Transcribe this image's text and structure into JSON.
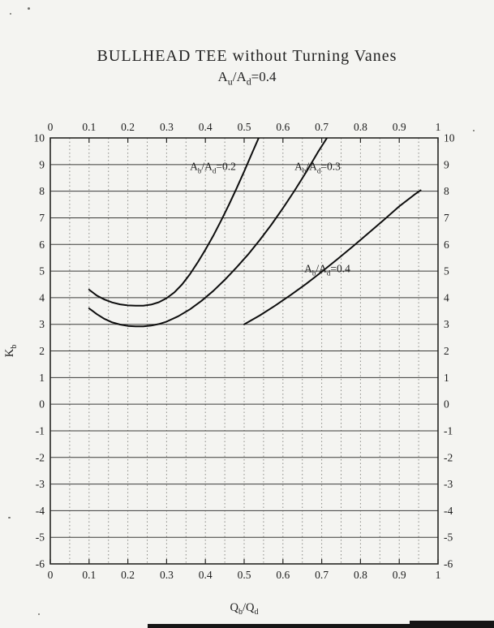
{
  "chart_data": {
    "type": "line",
    "title": "BULLHEAD TEE without Turning Vanes",
    "subtitle": "A_u/A_d=0.4",
    "xlabel": "Q_b/Q_d",
    "ylabel": "K_b",
    "xlim": [
      0,
      1
    ],
    "ylim": [
      -6,
      10
    ],
    "x_ticks": [
      0,
      0.1,
      0.2,
      0.3,
      0.4,
      0.5,
      0.6,
      0.7,
      0.8,
      0.9,
      1
    ],
    "x_tick_labels": [
      "0",
      "0.1",
      "0.2",
      "0.3",
      "0.4",
      "0.5",
      "0.6",
      "0.7",
      "0.8",
      "0.9",
      "1"
    ],
    "y_ticks": [
      10,
      9,
      8,
      7,
      6,
      5,
      4,
      3,
      2,
      1,
      0,
      -1,
      -2,
      -3,
      -4,
      -5,
      -6
    ],
    "y_tick_labels": [
      "10",
      "9",
      "8",
      "7",
      "6",
      "5",
      "4",
      "3",
      "2",
      "1",
      "0",
      "-1",
      "-2",
      "-3",
      "-4",
      "-5",
      "-6"
    ],
    "grid": {
      "horizontal": "solid",
      "vertical": "dotted",
      "vertical_step": 0.05
    },
    "legend_position": "inline-labels",
    "series": [
      {
        "name": "A_b/A_d=0.2",
        "label_at": {
          "x": 0.36,
          "y": 8.8
        },
        "points": [
          [
            0.1,
            4.3
          ],
          [
            0.12,
            4.08
          ],
          [
            0.14,
            3.93
          ],
          [
            0.16,
            3.82
          ],
          [
            0.18,
            3.75
          ],
          [
            0.2,
            3.71
          ],
          [
            0.22,
            3.7
          ],
          [
            0.24,
            3.7
          ],
          [
            0.26,
            3.74
          ],
          [
            0.28,
            3.83
          ],
          [
            0.3,
            3.98
          ],
          [
            0.32,
            4.2
          ],
          [
            0.34,
            4.5
          ],
          [
            0.36,
            4.88
          ],
          [
            0.38,
            5.32
          ],
          [
            0.4,
            5.8
          ],
          [
            0.42,
            6.32
          ],
          [
            0.44,
            6.88
          ],
          [
            0.46,
            7.47
          ],
          [
            0.48,
            8.09
          ],
          [
            0.5,
            8.74
          ],
          [
            0.52,
            9.42
          ],
          [
            0.545,
            10.25
          ]
        ]
      },
      {
        "name": "A_b/A_d=0.3",
        "label_at": {
          "x": 0.63,
          "y": 8.8
        },
        "points": [
          [
            0.1,
            3.6
          ],
          [
            0.12,
            3.38
          ],
          [
            0.14,
            3.2
          ],
          [
            0.16,
            3.07
          ],
          [
            0.18,
            2.99
          ],
          [
            0.2,
            2.94
          ],
          [
            0.22,
            2.92
          ],
          [
            0.24,
            2.92
          ],
          [
            0.26,
            2.95
          ],
          [
            0.28,
            3.01
          ],
          [
            0.3,
            3.1
          ],
          [
            0.33,
            3.3
          ],
          [
            0.36,
            3.56
          ],
          [
            0.39,
            3.88
          ],
          [
            0.42,
            4.25
          ],
          [
            0.45,
            4.67
          ],
          [
            0.48,
            5.13
          ],
          [
            0.51,
            5.62
          ],
          [
            0.54,
            6.16
          ],
          [
            0.57,
            6.74
          ],
          [
            0.6,
            7.36
          ],
          [
            0.63,
            8.02
          ],
          [
            0.66,
            8.72
          ],
          [
            0.69,
            9.46
          ],
          [
            0.72,
            10.15
          ]
        ]
      },
      {
        "name": "A_b/A_d=0.4",
        "label_at": {
          "x": 0.655,
          "y": 4.95
        },
        "points": [
          [
            0.5,
            3.0
          ],
          [
            0.54,
            3.33
          ],
          [
            0.58,
            3.7
          ],
          [
            0.62,
            4.1
          ],
          [
            0.66,
            4.52
          ],
          [
            0.7,
            4.97
          ],
          [
            0.74,
            5.44
          ],
          [
            0.78,
            5.92
          ],
          [
            0.82,
            6.42
          ],
          [
            0.86,
            6.92
          ],
          [
            0.9,
            7.43
          ],
          [
            0.94,
            7.88
          ],
          [
            0.955,
            8.03
          ]
        ]
      }
    ]
  }
}
